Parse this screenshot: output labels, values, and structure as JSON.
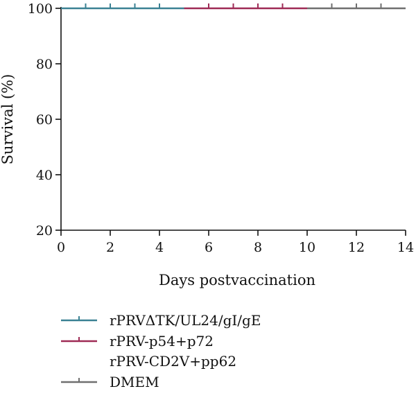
{
  "chart_data": {
    "type": "line",
    "chart_style": "kaplan-meier step curves with censor tick marks",
    "title": "",
    "xlabel": "Days postvaccination",
    "ylabel": "Survival (%)",
    "xlim": [
      0,
      14
    ],
    "ylim": [
      20,
      100
    ],
    "xticks": [
      "0",
      "2",
      "4",
      "6",
      "8",
      "10",
      "12",
      "14"
    ],
    "yticks": [
      "20",
      "40",
      "60",
      "80",
      "100"
    ],
    "grid": false,
    "legend_position": "bottom-left",
    "series": [
      {
        "name": "rPRVΔTK/UL24/gI/gE",
        "color": "#3a8193",
        "x": [
          0,
          5
        ],
        "y": [
          100,
          100
        ],
        "censor_x": [
          1,
          2,
          3,
          4
        ]
      },
      {
        "name": "rPRV-p54+p72\nrPRV-CD2V+pp62",
        "color": "#9e2a55",
        "x": [
          5,
          10
        ],
        "y": [
          100,
          100
        ],
        "censor_x": [
          6,
          7,
          8,
          9
        ]
      },
      {
        "name": "DMEM",
        "color": "#6f6f6f",
        "x": [
          10,
          14
        ],
        "y": [
          100,
          100
        ],
        "censor_x": [
          11,
          12,
          13
        ]
      }
    ]
  }
}
